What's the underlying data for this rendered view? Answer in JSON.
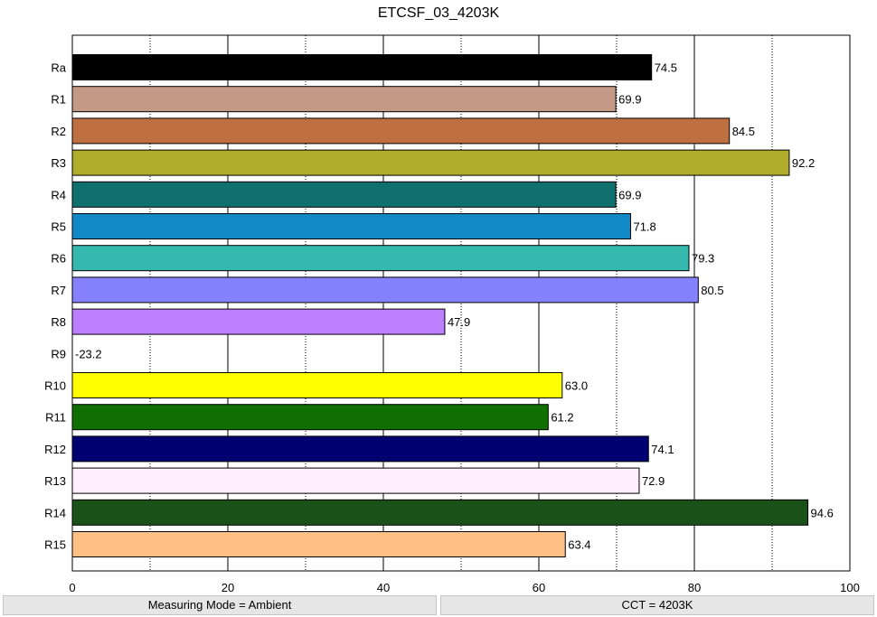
{
  "chart_data": {
    "type": "bar",
    "orientation": "horizontal",
    "title": "ETCSF_03_4203K",
    "categories": [
      "Ra",
      "R1",
      "R2",
      "R3",
      "R4",
      "R5",
      "R6",
      "R7",
      "R8",
      "R9",
      "R10",
      "R11",
      "R12",
      "R13",
      "R14",
      "R15"
    ],
    "values": [
      74.5,
      69.9,
      84.5,
      92.2,
      69.9,
      71.8,
      79.3,
      80.5,
      47.9,
      -23.2,
      63.0,
      61.2,
      74.1,
      72.9,
      94.6,
      63.4
    ],
    "value_labels": [
      "74.5",
      "69.9",
      "84.5",
      "92.2",
      "69.9",
      "71.8",
      "79.3",
      "80.5",
      "47.9",
      "-23.2",
      "63.0",
      "61.2",
      "74.1",
      "72.9",
      "94.6",
      "63.4"
    ],
    "colors": [
      "#000000",
      "#c49a86",
      "#bf7040",
      "#afad2b",
      "#0f706e",
      "#1189c6",
      "#35b8ae",
      "#8681ff",
      "#bd7fff",
      "#ffffff",
      "#ffff00",
      "#0f6f00",
      "#000070",
      "#ffeefe",
      "#195119",
      "#ffc086"
    ],
    "xlim": [
      0,
      100
    ],
    "xticks": [
      0,
      20,
      40,
      60,
      80,
      100
    ],
    "xtick_labels": [
      "0",
      "20",
      "40",
      "60",
      "80",
      "100"
    ],
    "grid": {
      "major": [
        20,
        40,
        60,
        80
      ],
      "minor": [
        10,
        30,
        50,
        70,
        90
      ]
    },
    "xlabel": "",
    "ylabel": ""
  },
  "status_bar": {
    "left": "Measuring Mode = Ambient",
    "right": "CCT = 4203K"
  }
}
